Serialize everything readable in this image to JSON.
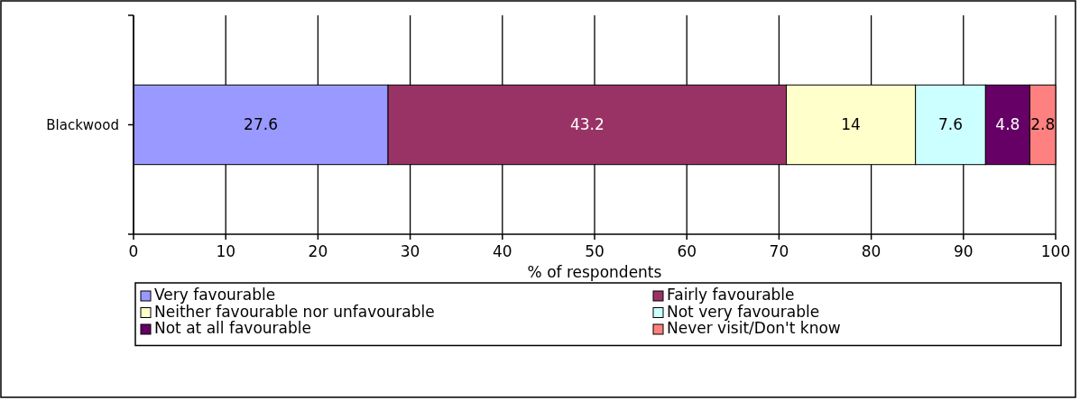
{
  "chart_data": {
    "type": "bar",
    "orientation": "horizontal",
    "stacked": true,
    "categories": [
      "Blackwood"
    ],
    "series": [
      {
        "name": "Very favourable",
        "color": "#9999ff",
        "values": [
          27.6
        ]
      },
      {
        "name": "Fairly favourable",
        "color": "#993366",
        "values": [
          43.2
        ]
      },
      {
        "name": "Neither favourable nor unfavourable",
        "color": "#ffffcc",
        "values": [
          14
        ]
      },
      {
        "name": "Not very favourable",
        "color": "#ccffff",
        "values": [
          7.6
        ]
      },
      {
        "name": "Not at all favourable",
        "color": "#660066",
        "values": [
          4.8
        ]
      },
      {
        "name": "Never visit/Don't know",
        "color": "#ff8080",
        "values": [
          2.8
        ]
      }
    ],
    "xlabel": "% of respondents",
    "xlim": [
      0,
      100
    ],
    "xticks": [
      0,
      10,
      20,
      30,
      40,
      50,
      60,
      70,
      80,
      90,
      100
    ],
    "grid": "x",
    "legend": "bottom",
    "data_labels": true
  }
}
